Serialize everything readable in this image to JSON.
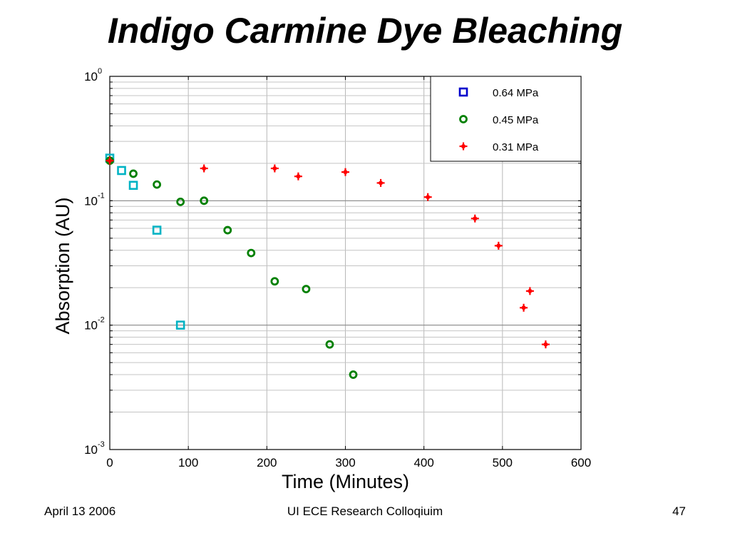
{
  "slide": {
    "title": "Indigo Carmine Dye Bleaching",
    "footer_date": "April 13 2006",
    "footer_center": "UI ECE Research Colloqiuim",
    "slide_number": "47"
  },
  "chart_data": {
    "type": "scatter",
    "xlabel": "Time (Minutes)",
    "ylabel": "Absorption (AU)",
    "xlim": [
      0,
      600
    ],
    "ylim": [
      0.001,
      1
    ],
    "yscale": "log",
    "grid": true,
    "legend_position": "top-right",
    "x_ticks": [
      "0",
      "100",
      "200",
      "300",
      "400",
      "500",
      "600"
    ],
    "y_ticks": [
      {
        "base": "10",
        "exp": "0"
      },
      {
        "base": "10",
        "exp": "-1"
      },
      {
        "base": "10",
        "exp": "-2"
      },
      {
        "base": "10",
        "exp": "-3"
      }
    ],
    "series": [
      {
        "name": "0.64 MPa",
        "marker": "square",
        "legend_color": "#0000cc",
        "color": "#00b3c4",
        "points": [
          [
            0,
            0.22
          ],
          [
            15,
            0.175
          ],
          [
            30,
            0.133
          ],
          [
            60,
            0.058
          ],
          [
            90,
            0.01
          ]
        ]
      },
      {
        "name": "0.45 MPa",
        "marker": "circle",
        "color": "#008000",
        "points": [
          [
            0,
            0.21
          ],
          [
            30,
            0.165
          ],
          [
            60,
            0.135
          ],
          [
            90,
            0.098
          ],
          [
            120,
            0.1
          ],
          [
            150,
            0.058
          ],
          [
            180,
            0.038
          ],
          [
            210,
            0.0225
          ],
          [
            250,
            0.0195
          ],
          [
            280,
            0.007
          ],
          [
            310,
            0.004
          ]
        ]
      },
      {
        "name": "0.31 MPa",
        "marker": "star",
        "color": "#ff0000",
        "points": [
          [
            0,
            0.21
          ],
          [
            120,
            0.182
          ],
          [
            210,
            0.182
          ],
          [
            240,
            0.157
          ],
          [
            300,
            0.17
          ],
          [
            345,
            0.139
          ],
          [
            405,
            0.107
          ],
          [
            465,
            0.072
          ],
          [
            495,
            0.0435
          ],
          [
            527,
            0.0138
          ],
          [
            535,
            0.0188
          ],
          [
            555,
            0.007
          ]
        ]
      }
    ]
  }
}
